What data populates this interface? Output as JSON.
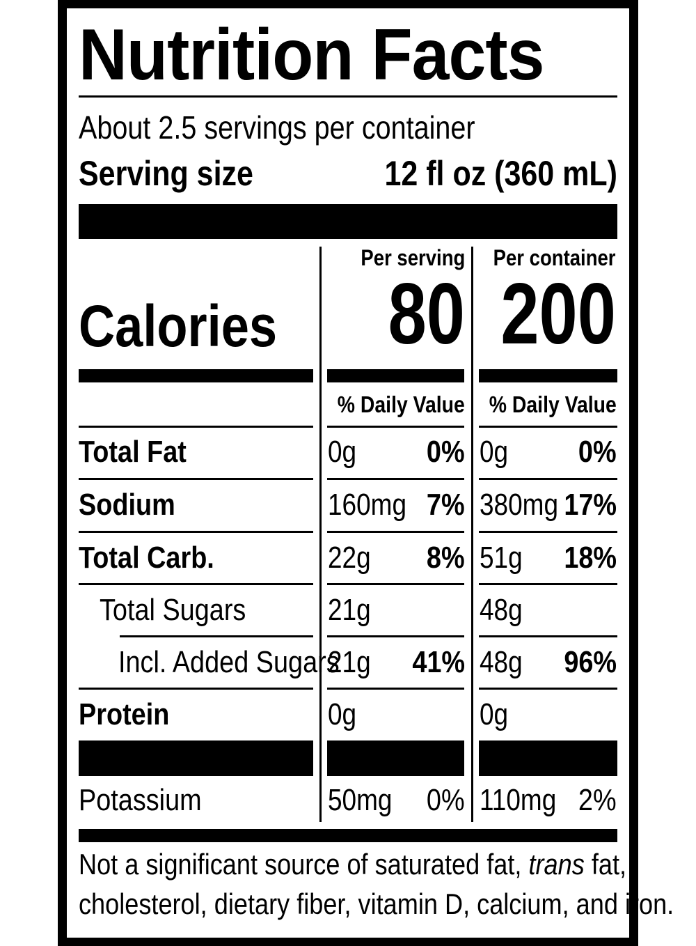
{
  "title": "Nutrition Facts",
  "servings_per_container": "About 2.5 servings per container",
  "serving_size_label": "Serving size",
  "serving_size_value": "12 fl oz (360 mL)",
  "columns": {
    "per_serving": "Per serving",
    "per_container": "Per container",
    "daily_value": "% Daily Value"
  },
  "calories": {
    "label": "Calories",
    "per_serving": "80",
    "per_container": "200"
  },
  "nutrients": [
    {
      "label": "Total Fat",
      "serving_amount": "0g",
      "serving_pct": "0%",
      "container_amount": "0g",
      "container_pct": "0%"
    },
    {
      "label": "Sodium",
      "serving_amount": "160mg",
      "serving_pct": "7%",
      "container_amount": "380mg",
      "container_pct": "17%"
    },
    {
      "label": "Total Carb.",
      "serving_amount": "22g",
      "serving_pct": "8%",
      "container_amount": "51g",
      "container_pct": "18%"
    },
    {
      "label": "Total Sugars",
      "serving_amount": "21g",
      "serving_pct": "",
      "container_amount": "48g",
      "container_pct": ""
    },
    {
      "label": "Incl. Added Sugars",
      "serving_amount": "21g",
      "serving_pct": "41%",
      "container_amount": "48g",
      "container_pct": "96%"
    },
    {
      "label": "Protein",
      "serving_amount": "0g",
      "serving_pct": "",
      "container_amount": "0g",
      "container_pct": ""
    }
  ],
  "potassium": {
    "label": "Potassium",
    "serving_amount": "50mg",
    "serving_pct": "0%",
    "container_amount": "110mg",
    "container_pct": "2%"
  },
  "footnote": {
    "line1_before": "Not a significant source of saturated fat, ",
    "line1_italic": "trans",
    "line1_after": " fat,",
    "line2": "cholesterol, dietary fiber, vitamin D, calcium, and iron."
  }
}
